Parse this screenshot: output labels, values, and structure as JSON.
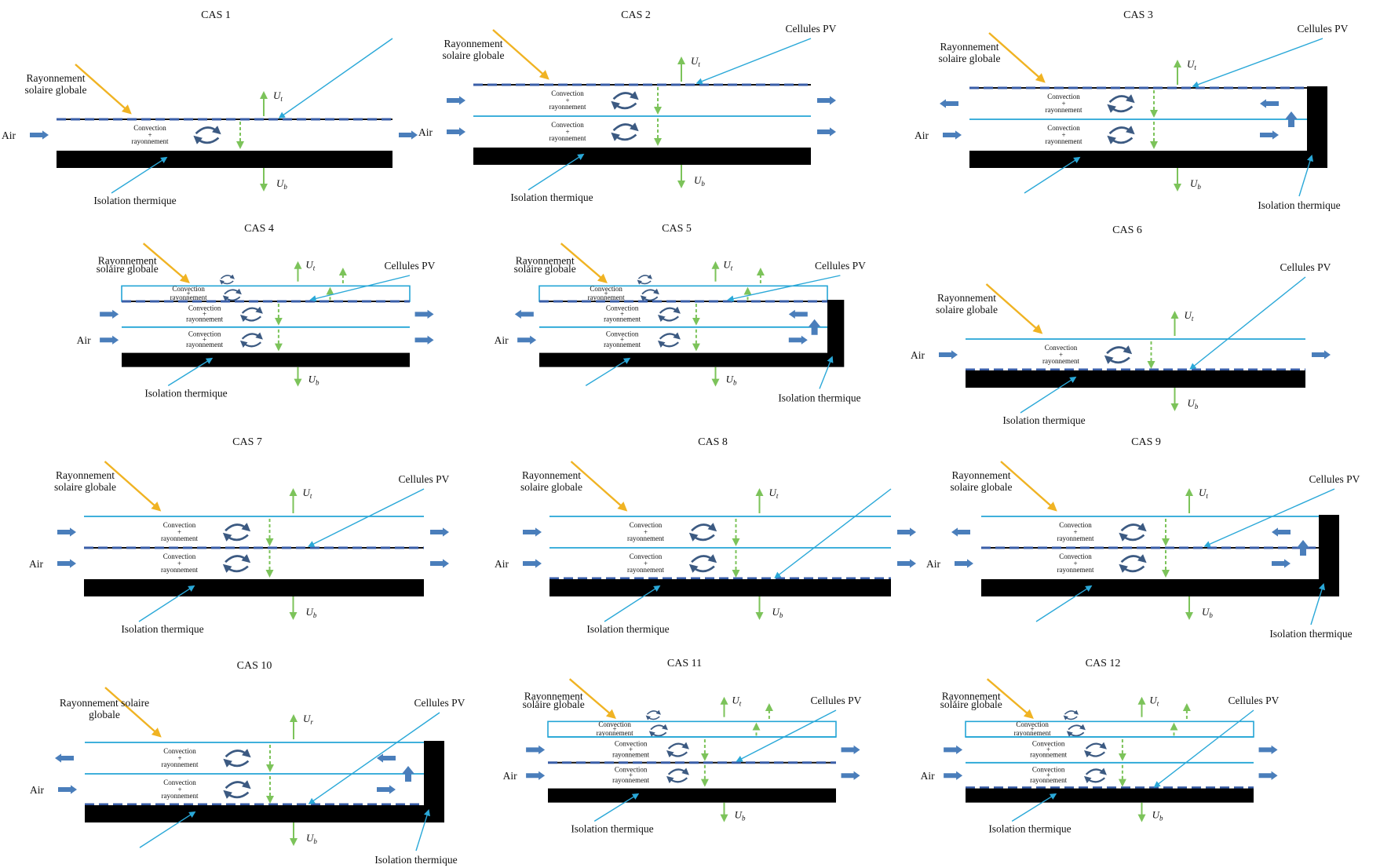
{
  "labels": {
    "solar_1": "Rayonnement",
    "solar_2": "solaire globale",
    "solar_full": "Rayonnement solaire",
    "solar_full_2": "globale",
    "air": "Air",
    "pv": "Cellules PV",
    "insulation": "Isolation thermique",
    "conv_1": "Convection",
    "conv_2": "+",
    "conv_3": "rayonnement",
    "ut": "U",
    "ut_sub": "t",
    "ub": "U",
    "ub_sub": "b",
    "ur_sub": "r"
  },
  "colors": {
    "solar_arrow": "#f0b323",
    "pv_line": "#2aa8d8",
    "heat_arrow": "#7cc35a",
    "flow_arrow": "#4a7ebb",
    "insulation": "#000000",
    "glass_line": "#24a5d6",
    "pv_dash": "#3a5ea8",
    "swirl": "#3c5a82"
  },
  "cases": [
    {
      "title": "CAS 1",
      "channels": 1,
      "dual_glass": false,
      "closed": false,
      "pv_position": "top",
      "pv_label": false,
      "uvar": "t"
    },
    {
      "title": "CAS 2",
      "channels": 2,
      "dual_glass": false,
      "closed": false,
      "pv_position": "top",
      "pv_label": true,
      "uvar": "t"
    },
    {
      "title": "CAS 3",
      "channels": 2,
      "dual_glass": false,
      "closed": true,
      "pv_position": "top",
      "pv_label": true,
      "uvar": "t"
    },
    {
      "title": "CAS 4",
      "channels": 2,
      "dual_glass": true,
      "closed": false,
      "pv_position": "top",
      "pv_label": true,
      "uvar": "t"
    },
    {
      "title": "CAS 5",
      "channels": 2,
      "dual_glass": true,
      "closed": true,
      "pv_position": "top",
      "pv_label": true,
      "uvar": "t"
    },
    {
      "title": "CAS 6",
      "channels": 1,
      "dual_glass": false,
      "closed": false,
      "pv_position": "bottom",
      "pv_label": true,
      "uvar": "t"
    },
    {
      "title": "CAS 7",
      "channels": 2,
      "dual_glass": false,
      "closed": false,
      "pv_position": "middle",
      "pv_label": true,
      "uvar": "t"
    },
    {
      "title": "CAS 8",
      "channels": 2,
      "dual_glass": false,
      "closed": false,
      "pv_position": "bottom",
      "pv_label": false,
      "uvar": "t"
    },
    {
      "title": "CAS 9",
      "channels": 2,
      "dual_glass": false,
      "closed": true,
      "pv_position": "middle",
      "pv_label": true,
      "uvar": "t"
    },
    {
      "title": "CAS 10",
      "channels": 2,
      "dual_glass": false,
      "closed": true,
      "pv_position": "bottom",
      "pv_label": true,
      "uvar": "r"
    },
    {
      "title": "CAS 11",
      "channels": 2,
      "dual_glass": true,
      "closed": false,
      "pv_position": "middle",
      "pv_label": true,
      "uvar": "t"
    },
    {
      "title": "CAS 12",
      "channels": 2,
      "dual_glass": true,
      "closed": false,
      "pv_position": "bottom",
      "pv_label": true,
      "uvar": "t"
    }
  ]
}
